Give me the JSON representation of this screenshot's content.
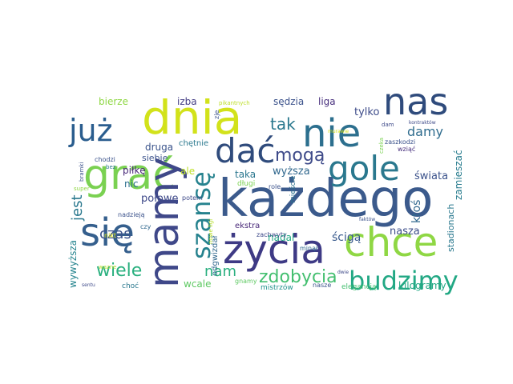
{
  "wordcloud": {
    "words": [
      {
        "text": "każdego",
        "color": "#3b5a8c"
      },
      {
        "text": "dnia",
        "color": "#d2e21b"
      },
      {
        "text": "nie",
        "color": "#2c6f8e"
      },
      {
        "text": "nas",
        "color": "#2f4b7c"
      },
      {
        "text": "grać",
        "color": "#7ad151"
      },
      {
        "text": "życia",
        "color": "#3e3a85"
      },
      {
        "text": "się",
        "color": "#355f8d"
      },
      {
        "text": "mamy",
        "color": "#3f4889"
      },
      {
        "text": "chce",
        "color": "#8fd744"
      },
      {
        "text": "dać",
        "color": "#2f4b7c"
      },
      {
        "text": "gole",
        "color": "#2a788e"
      },
      {
        "text": "już",
        "color": "#2a5d8e"
      },
      {
        "text": "szansę",
        "color": "#26828e"
      },
      {
        "text": "budzimy",
        "color": "#22a884"
      },
      {
        "text": "zdobycia",
        "color": "#44bf70"
      },
      {
        "text": "mogą",
        "color": "#3e4a89"
      },
      {
        "text": "wiele",
        "color": "#2ab07f"
      },
      {
        "text": "tak",
        "color": "#2a788e"
      },
      {
        "text": "nam",
        "color": "#29af7f"
      },
      {
        "text": "damy",
        "color": "#2f6c8e"
      },
      {
        "text": "czas",
        "color": "#3b528b"
      },
      {
        "text": "jest",
        "color": "#2a788e"
      },
      {
        "text": "ktoś",
        "color": "#31688e"
      },
      {
        "text": "połowę",
        "color": "#3e4989"
      },
      {
        "text": "sędzia",
        "color": "#3b528b"
      },
      {
        "text": "liga",
        "color": "#472f7d"
      },
      {
        "text": "izba",
        "color": "#433d84"
      },
      {
        "text": "bierze",
        "color": "#8fd744"
      },
      {
        "text": "tylko",
        "color": "#3e4c8a"
      },
      {
        "text": "nasza",
        "color": "#3d4e8a"
      },
      {
        "text": "ścigą",
        "color": "#38598c"
      },
      {
        "text": "nadal",
        "color": "#22a884"
      },
      {
        "text": "wcale",
        "color": "#5ec962"
      },
      {
        "text": "świata",
        "color": "#3b528b"
      },
      {
        "text": "wyższa",
        "color": "#31688e"
      },
      {
        "text": "taka",
        "color": "#2a768e"
      },
      {
        "text": "druga",
        "color": "#3a538b"
      },
      {
        "text": "chętnie",
        "color": "#2a788e"
      },
      {
        "text": "siebie",
        "color": "#3b528b"
      },
      {
        "text": "piłkę",
        "color": "#482878"
      },
      {
        "text": "nic",
        "color": "#2d708e"
      },
      {
        "text": "ale",
        "color": "#bddf26"
      },
      {
        "text": "wywyższa",
        "color": "#25848e"
      },
      {
        "text": "zamieszać",
        "color": "#287c8e"
      },
      {
        "text": "stadionach",
        "color": "#2a788e"
      },
      {
        "text": "odgwizdał",
        "color": "#31688e"
      },
      {
        "text": "kilogramy",
        "color": "#22a884"
      },
      {
        "text": "elegancją",
        "color": "#44bf70"
      },
      {
        "text": "mistrzów",
        "color": "#21918c"
      },
      {
        "text": "ekstra",
        "color": "#482878"
      },
      {
        "text": "zachwyty",
        "color": "#3e4a89"
      },
      {
        "text": "minął",
        "color": "#31688e"
      },
      {
        "text": "gnamy",
        "color": "#5ec962"
      },
      {
        "text": "nowe ligi",
        "color": "#b5de2b"
      },
      {
        "text": "długi",
        "color": "#7ad151"
      },
      {
        "text": "role",
        "color": "#3b528b"
      },
      {
        "text": "mieście",
        "color": "#2c728e"
      },
      {
        "text": "potem",
        "color": "#3e4a89"
      },
      {
        "text": "czy",
        "color": "#31688e"
      },
      {
        "text": "nadzieją",
        "color": "#3b528b"
      },
      {
        "text": "nikt",
        "color": "#e0e31a"
      },
      {
        "text": "wazne",
        "color": "#b5de2b"
      },
      {
        "text": "bramki",
        "color": "#3b528b"
      },
      {
        "text": "super",
        "color": "#8fd744"
      },
      {
        "text": "chodzi",
        "color": "#3b528b"
      },
      {
        "text": "bez",
        "color": "#2a788e"
      },
      {
        "text": "choć",
        "color": "#2a788e"
      },
      {
        "text": "sentu",
        "color": "#3e4a89"
      },
      {
        "text": "pikantnych",
        "color": "#bddf26"
      },
      {
        "text": "zje",
        "color": "#3b528b"
      },
      {
        "text": "murawie",
        "color": "#d8e219"
      },
      {
        "text": "kontraktów",
        "color": "#3e4a89"
      },
      {
        "text": "dam",
        "color": "#3e4a89"
      },
      {
        "text": "zaszkodzi",
        "color": "#3b528b"
      },
      {
        "text": "wziąć",
        "color": "#472f7d"
      },
      {
        "text": "czeka",
        "color": "#7ad151"
      },
      {
        "text": "faktów",
        "color": "#3b528b"
      },
      {
        "text": "dwie",
        "color": "#3e4a89"
      },
      {
        "text": "nasze",
        "color": "#3b528b"
      }
    ]
  }
}
